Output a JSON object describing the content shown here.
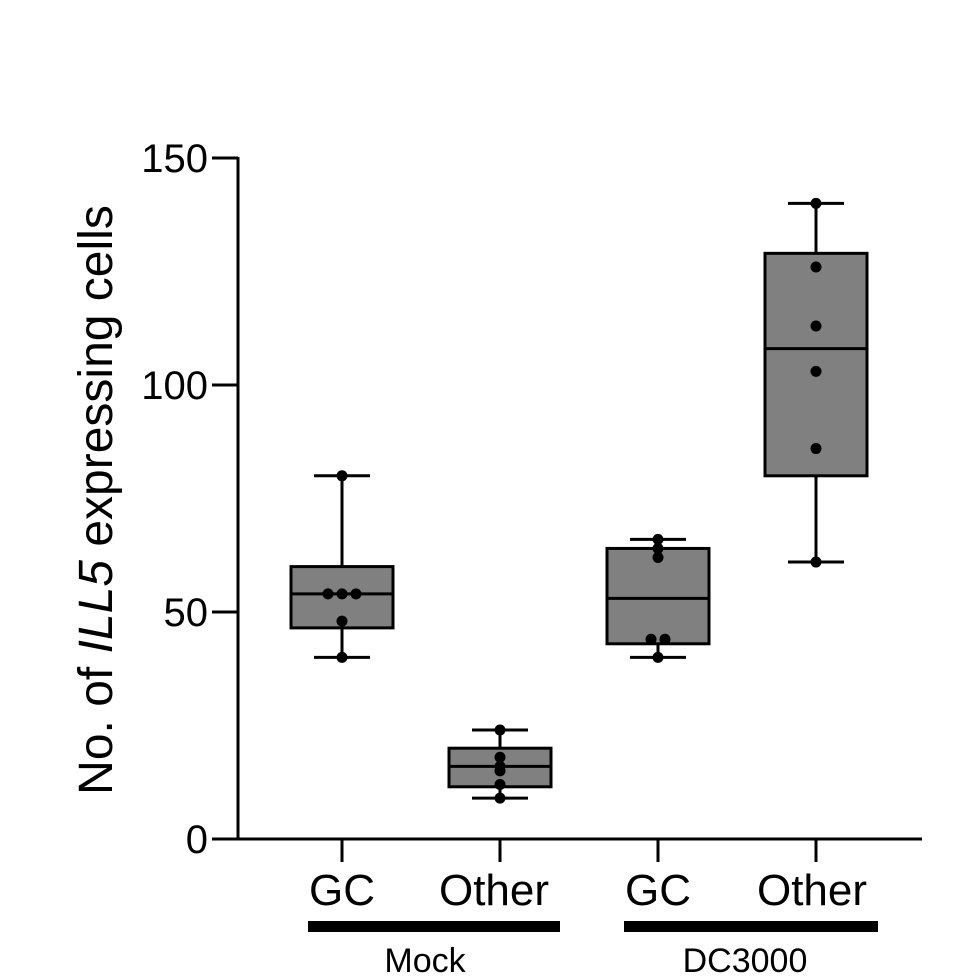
{
  "chart_data": {
    "type": "box",
    "title": "",
    "ylabel_parts": [
      "No. of ",
      "ILL5",
      " expressing cells"
    ],
    "ylim": [
      0,
      150
    ],
    "yticks": [
      "0",
      "50",
      "100",
      "150"
    ],
    "box_color": "#808080",
    "categories": [
      "GC",
      "Other",
      "GC",
      "Other"
    ],
    "groups": [
      {
        "name": "Mock",
        "categories": [
          0,
          1
        ]
      },
      {
        "name": "DC3000",
        "categories": [
          2,
          3
        ]
      }
    ],
    "boxes": [
      {
        "category": "GC",
        "group": "Mock",
        "min": 40,
        "q1": 46.5,
        "median": 54,
        "q3": 60,
        "max": 80,
        "points": [
          40,
          48,
          54,
          54,
          54,
          80
        ]
      },
      {
        "category": "Other",
        "group": "Mock",
        "min": 9,
        "q1": 11.5,
        "median": 16,
        "q3": 20,
        "max": 24,
        "points": [
          9,
          12,
          15,
          16,
          18,
          24
        ]
      },
      {
        "category": "GC",
        "group": "DC3000",
        "min": 40,
        "q1": 43,
        "median": 53,
        "q3": 64,
        "max": 66,
        "points": [
          40,
          44,
          44,
          62,
          64,
          66
        ]
      },
      {
        "category": "Other",
        "group": "DC3000",
        "min": 61,
        "q1": 80,
        "median": 108,
        "q3": 129,
        "max": 140,
        "points": [
          61,
          86,
          103,
          113,
          126,
          140
        ]
      }
    ]
  }
}
